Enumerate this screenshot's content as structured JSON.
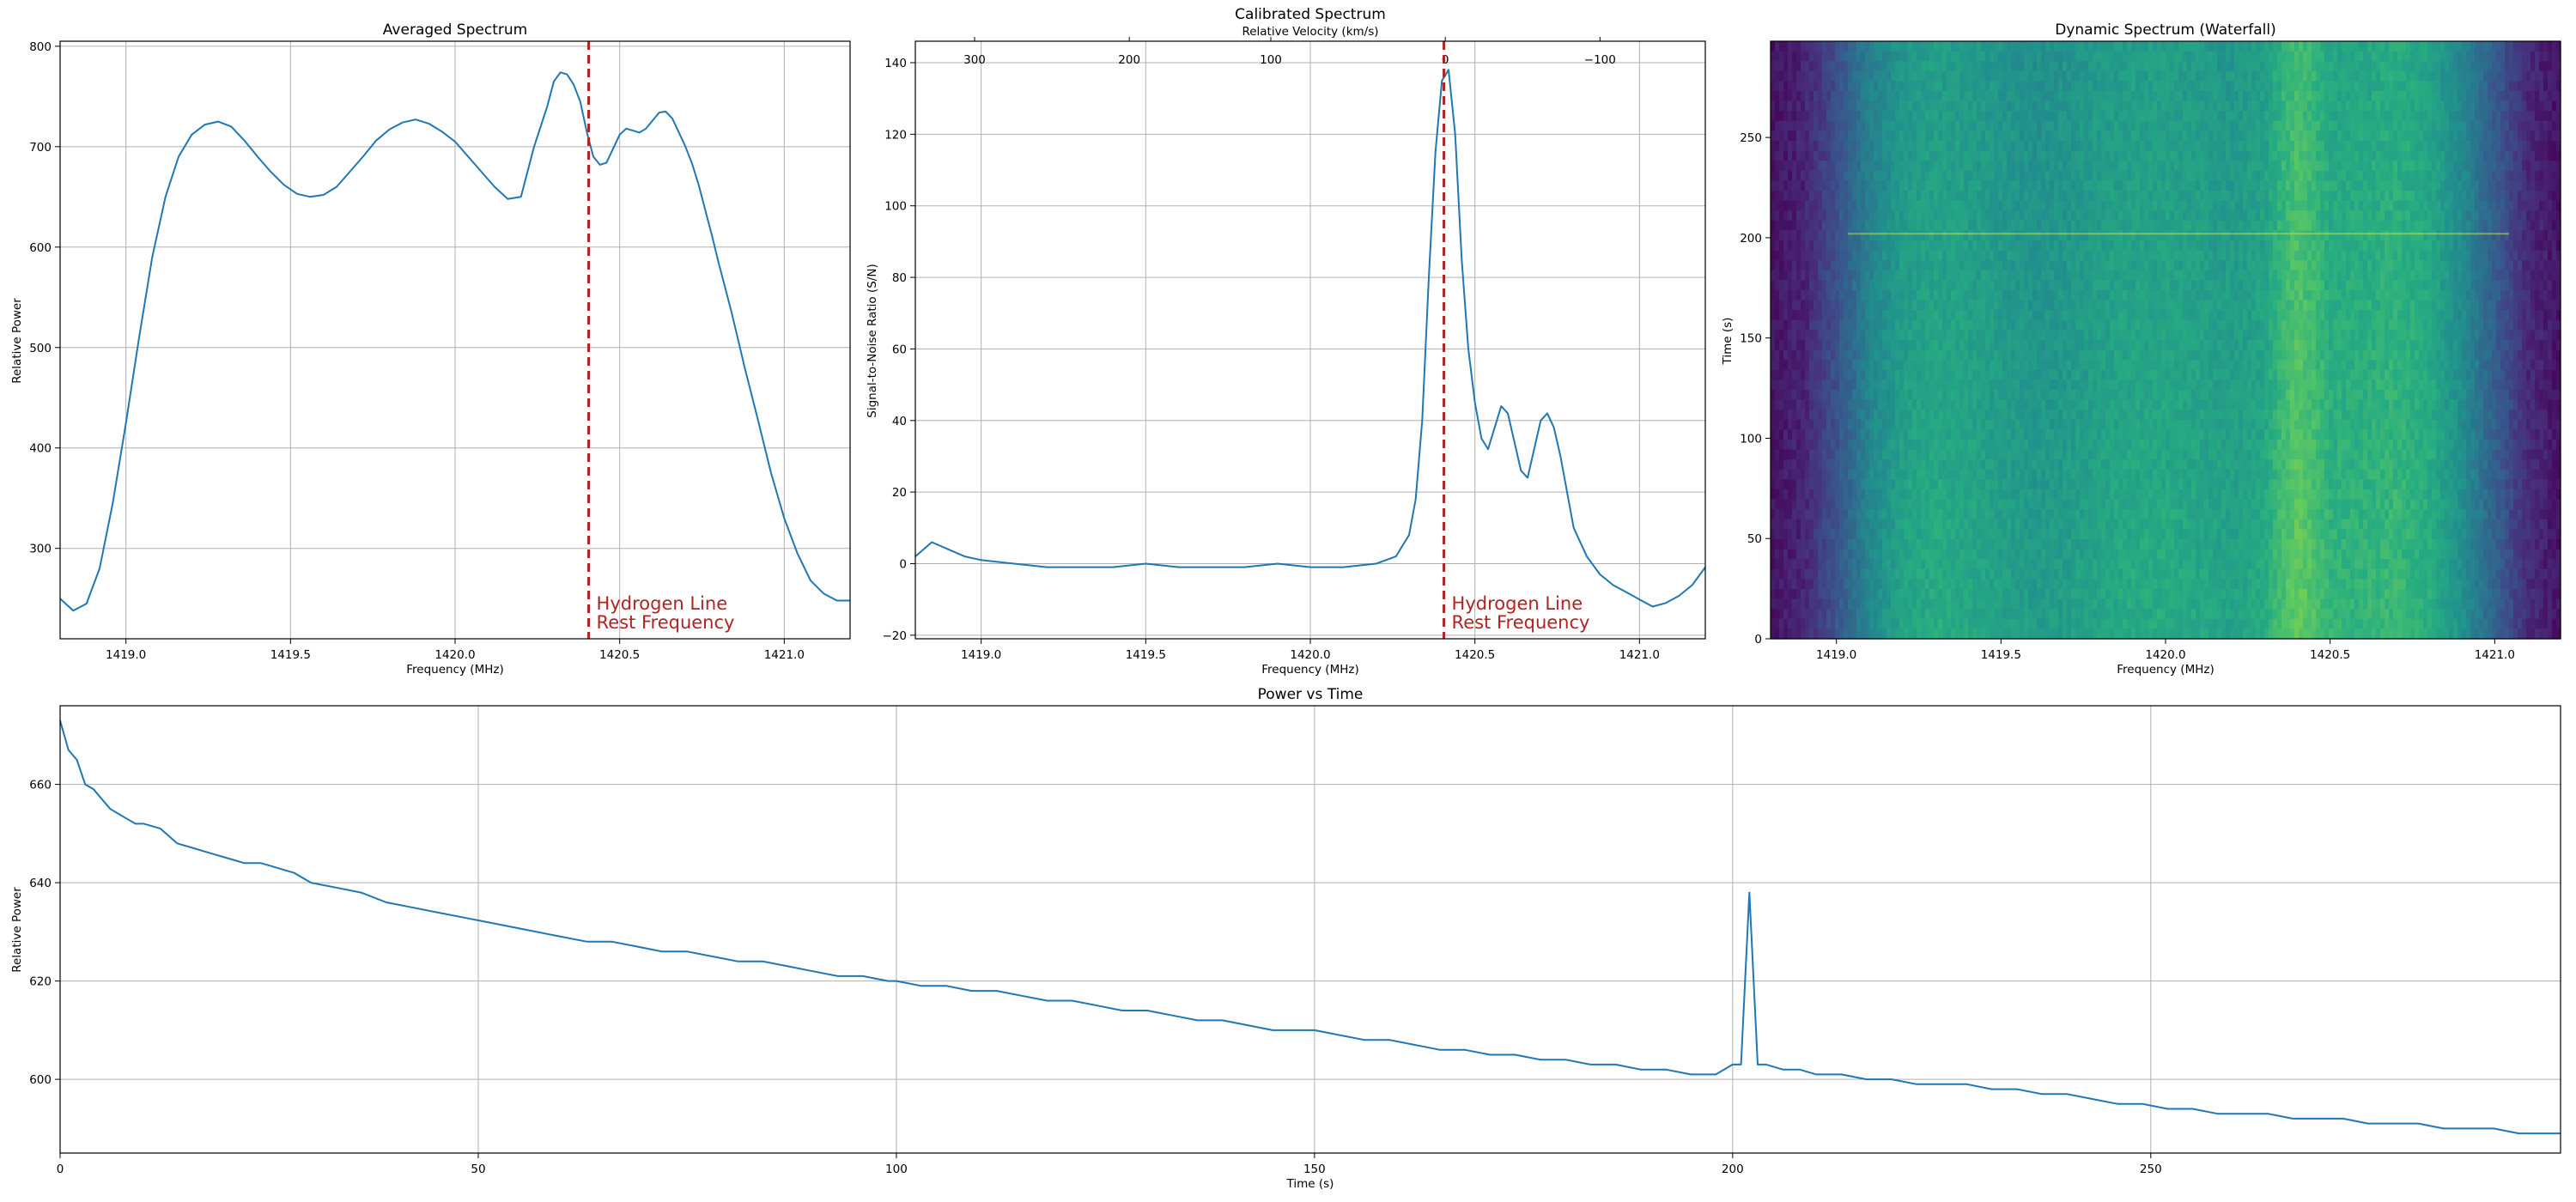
{
  "chart_data": [
    {
      "id": "averaged",
      "type": "line",
      "title": "Averaged Spectrum",
      "xlabel": "Frequency (MHz)",
      "ylabel": "Relative Power",
      "xlim": [
        1418.8,
        1421.2
      ],
      "ylim": [
        210,
        805
      ],
      "xticks": [
        1419.0,
        1419.5,
        1420.0,
        1420.5,
        1421.0
      ],
      "xtick_labels": [
        "1419.0",
        "1419.5",
        "1420.0",
        "1420.5",
        "1421.0"
      ],
      "yticks": [
        300,
        400,
        500,
        600,
        700,
        800
      ],
      "ytick_labels": [
        "300",
        "400",
        "500",
        "600",
        "700",
        "800"
      ],
      "grid": true,
      "series": [
        {
          "x": [
            1418.8,
            1418.84,
            1418.88,
            1418.92,
            1418.96,
            1419.0,
            1419.04,
            1419.08,
            1419.12,
            1419.16,
            1419.2,
            1419.24,
            1419.28,
            1419.32,
            1419.36,
            1419.4,
            1419.44,
            1419.48,
            1419.52,
            1419.56,
            1419.6,
            1419.64,
            1419.68,
            1419.72,
            1419.76,
            1419.8,
            1419.84,
            1419.88,
            1419.92,
            1419.96,
            1420.0,
            1420.04,
            1420.08,
            1420.12,
            1420.16,
            1420.2,
            1420.24,
            1420.28,
            1420.3,
            1420.32,
            1420.34,
            1420.36,
            1420.38,
            1420.4,
            1420.42,
            1420.44,
            1420.46,
            1420.48,
            1420.5,
            1420.52,
            1420.54,
            1420.56,
            1420.58,
            1420.6,
            1420.62,
            1420.64,
            1420.66,
            1420.68,
            1420.7,
            1420.72,
            1420.74,
            1420.76,
            1420.78,
            1420.8,
            1420.84,
            1420.88,
            1420.92,
            1420.96,
            1421.0,
            1421.04,
            1421.08,
            1421.12,
            1421.16,
            1421.2
          ],
          "y": [
            250,
            238,
            245,
            280,
            345,
            425,
            510,
            590,
            650,
            690,
            712,
            722,
            725,
            720,
            706,
            690,
            675,
            662,
            653,
            650,
            652,
            660,
            675,
            690,
            706,
            717,
            724,
            727,
            723,
            715,
            705,
            690,
            675,
            660,
            648,
            650,
            700,
            740,
            765,
            774,
            772,
            762,
            745,
            715,
            690,
            682,
            684,
            698,
            712,
            718,
            716,
            714,
            718,
            726,
            734,
            735,
            728,
            714,
            700,
            683,
            662,
            637,
            612,
            585,
            535,
            480,
            428,
            375,
            330,
            295,
            268,
            255,
            248,
            248
          ]
        }
      ],
      "vline": {
        "x": 1420.4058,
        "label": "Hydrogen Line\nRest Frequency",
        "color": "#b22222"
      }
    },
    {
      "id": "calibrated",
      "type": "line",
      "title": "Calibrated Spectrum",
      "subtitle": "Relative Velocity (km/s)",
      "xlabel": "Frequency (MHz)",
      "ylabel": "Signal-to-Noise Ratio (S/N)",
      "xlim": [
        1418.8,
        1421.2
      ],
      "ylim": [
        -21,
        146
      ],
      "xticks": [
        1419.0,
        1419.5,
        1420.0,
        1420.5,
        1421.0
      ],
      "xtick_labels": [
        "1419.0",
        "1419.5",
        "1420.0",
        "1420.5",
        "1421.0"
      ],
      "yticks": [
        -20,
        0,
        20,
        40,
        60,
        80,
        100,
        120,
        140
      ],
      "ytick_labels": [
        "−20",
        "0",
        "20",
        "40",
        "60",
        "80",
        "100",
        "120",
        "140"
      ],
      "top_ticks_freq": [
        1418.98,
        1419.45,
        1419.88,
        1420.41,
        1420.88
      ],
      "top_tick_labels": [
        "300",
        "200",
        "100",
        "0",
        "−100"
      ],
      "grid": true,
      "series": [
        {
          "x": [
            1418.8,
            1418.85,
            1418.9,
            1418.95,
            1419.0,
            1419.1,
            1419.2,
            1419.3,
            1419.4,
            1419.5,
            1419.6,
            1419.7,
            1419.8,
            1419.9,
            1420.0,
            1420.1,
            1420.2,
            1420.26,
            1420.3,
            1420.32,
            1420.34,
            1420.36,
            1420.38,
            1420.4,
            1420.42,
            1420.44,
            1420.46,
            1420.48,
            1420.5,
            1420.52,
            1420.54,
            1420.56,
            1420.58,
            1420.6,
            1420.62,
            1420.64,
            1420.66,
            1420.68,
            1420.7,
            1420.72,
            1420.74,
            1420.76,
            1420.78,
            1420.8,
            1420.84,
            1420.88,
            1420.92,
            1420.96,
            1421.0,
            1421.04,
            1421.08,
            1421.12,
            1421.16,
            1421.2
          ],
          "y": [
            2,
            6,
            4,
            2,
            1,
            0,
            -1,
            -1,
            -1,
            0,
            -1,
            -1,
            -1,
            0,
            -1,
            -1,
            0,
            2,
            8,
            18,
            40,
            80,
            115,
            135,
            138,
            120,
            85,
            60,
            45,
            35,
            32,
            38,
            44,
            42,
            34,
            26,
            24,
            32,
            40,
            42,
            38,
            30,
            20,
            10,
            2,
            -3,
            -6,
            -8,
            -10,
            -12,
            -11,
            -9,
            -6,
            -1
          ]
        }
      ],
      "vline": {
        "x": 1420.4058,
        "label": "Hydrogen Line\nRest Frequency",
        "color": "#b22222"
      }
    },
    {
      "id": "waterfall",
      "type": "heatmap",
      "title": "Dynamic Spectrum (Waterfall)",
      "xlabel": "Frequency (MHz)",
      "ylabel": "Time (s)",
      "xlim": [
        1418.8,
        1421.2
      ],
      "ylim": [
        0,
        298
      ],
      "xticks": [
        1419.0,
        1419.5,
        1420.0,
        1420.5,
        1421.0
      ],
      "xtick_labels": [
        "1419.0",
        "1419.5",
        "1420.0",
        "1420.5",
        "1421.0"
      ],
      "yticks": [
        0,
        50,
        100,
        150,
        200,
        250
      ],
      "ytick_labels": [
        "0",
        "50",
        "100",
        "150",
        "200",
        "250"
      ],
      "colormap": "viridis",
      "spectrum_x": [
        1418.8,
        1418.9,
        1419.0,
        1419.1,
        1419.2,
        1419.3,
        1419.4,
        1419.5,
        1419.6,
        1419.7,
        1419.8,
        1419.9,
        1420.0,
        1420.1,
        1420.2,
        1420.3,
        1420.35,
        1420.4,
        1420.45,
        1420.5,
        1420.6,
        1420.7,
        1420.8,
        1420.9,
        1421.0,
        1421.1,
        1421.2
      ],
      "spectrum_level": [
        0.05,
        0.1,
        0.25,
        0.45,
        0.55,
        0.58,
        0.57,
        0.54,
        0.52,
        0.53,
        0.56,
        0.58,
        0.58,
        0.57,
        0.55,
        0.58,
        0.66,
        0.72,
        0.68,
        0.62,
        0.62,
        0.64,
        0.6,
        0.48,
        0.3,
        0.12,
        0.05
      ],
      "time_trend": [
        0,
        298,
        0.06,
        -0.04
      ],
      "rfi_time": 202
    },
    {
      "id": "power_time",
      "type": "line",
      "title": "Power vs Time",
      "xlabel": "Time (s)",
      "ylabel": "Relative Power",
      "xlim": [
        0,
        299
      ],
      "ylim": [
        585,
        676
      ],
      "xticks": [
        0,
        50,
        100,
        150,
        200,
        250
      ],
      "xtick_labels": [
        "0",
        "50",
        "100",
        "150",
        "200",
        "250"
      ],
      "yticks": [
        600,
        620,
        640,
        660
      ],
      "ytick_labels": [
        "600",
        "620",
        "640",
        "660"
      ],
      "grid": true,
      "series": [
        {
          "x": [
            0,
            1,
            2,
            3,
            4,
            5,
            6,
            7,
            8,
            9,
            10,
            12,
            14,
            16,
            18,
            20,
            22,
            24,
            26,
            28,
            30,
            33,
            36,
            39,
            42,
            45,
            48,
            51,
            54,
            57,
            60,
            63,
            66,
            69,
            72,
            75,
            78,
            81,
            84,
            87,
            90,
            93,
            96,
            99,
            100,
            103,
            106,
            109,
            112,
            115,
            118,
            121,
            124,
            127,
            130,
            133,
            136,
            139,
            142,
            145,
            148,
            150,
            153,
            156,
            159,
            162,
            165,
            168,
            171,
            174,
            177,
            180,
            183,
            186,
            189,
            192,
            195,
            198,
            200,
            201,
            202,
            203,
            204,
            206,
            208,
            210,
            213,
            216,
            219,
            222,
            225,
            228,
            231,
            234,
            237,
            240,
            243,
            246,
            249,
            252,
            255,
            258,
            261,
            264,
            267,
            270,
            273,
            276,
            279,
            282,
            285,
            288,
            291,
            294,
            297,
            299
          ],
          "y": [
            673,
            667,
            665,
            660,
            659,
            657,
            655,
            654,
            653,
            652,
            652,
            651,
            648,
            647,
            646,
            645,
            644,
            644,
            643,
            642,
            640,
            639,
            638,
            636,
            635,
            634,
            633,
            632,
            631,
            630,
            629,
            628,
            628,
            627,
            626,
            626,
            625,
            624,
            624,
            623,
            622,
            621,
            621,
            620,
            620,
            619,
            619,
            618,
            618,
            617,
            616,
            616,
            615,
            614,
            614,
            613,
            612,
            612,
            611,
            610,
            610,
            610,
            609,
            608,
            608,
            607,
            606,
            606,
            605,
            605,
            604,
            604,
            603,
            603,
            602,
            602,
            601,
            601,
            603,
            603,
            638,
            603,
            603,
            602,
            602,
            601,
            601,
            600,
            600,
            599,
            599,
            599,
            598,
            598,
            597,
            597,
            596,
            595,
            595,
            594,
            594,
            593,
            593,
            593,
            592,
            592,
            592,
            591,
            591,
            591,
            590,
            590,
            590,
            589,
            589,
            589
          ]
        }
      ]
    }
  ]
}
